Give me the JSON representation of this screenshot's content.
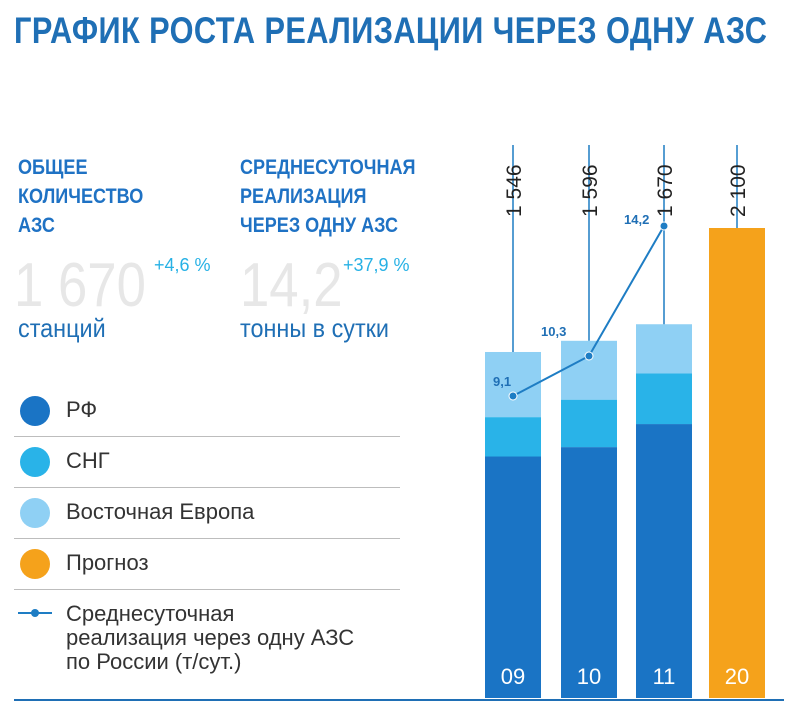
{
  "title": "ГРАФИК РОСТА РЕАЛИЗАЦИИ ЧЕРЕЗ ОДНУ АЗС",
  "colors": {
    "title": "#1f6fb5",
    "rf": "#1a74c5",
    "sng": "#29b3e8",
    "eu": "#8fd0f4",
    "forecast": "#f5a21b",
    "line": "#1e7dc4",
    "bignum": "#e7e7e7",
    "delta": "#27b1e5"
  },
  "kpi": {
    "stations": {
      "header": [
        "ОБЩЕЕ",
        "КОЛИЧЕСТВО",
        "АЗС"
      ],
      "value": "1 670",
      "delta": "+4,6 %",
      "unit": "станций"
    },
    "daily": {
      "header": [
        "СРЕДНЕСУТОЧНАЯ",
        "РЕАЛИЗАЦИЯ",
        "ЧЕРЕЗ ОДНУ АЗС"
      ],
      "value": "14,2",
      "delta": "+37,9 %",
      "unit": "тонны в сутки"
    }
  },
  "legend": {
    "items": [
      {
        "label": "РФ",
        "color_key": "rf"
      },
      {
        "label": "СНГ",
        "color_key": "sng"
      },
      {
        "label": "Восточная Европа",
        "color_key": "eu"
      },
      {
        "label": "Прогноз",
        "color_key": "forecast"
      }
    ],
    "line_label": [
      "Среднесуточная",
      "реализация через одну АЗС",
      "по России (т/сут.)"
    ]
  },
  "chart_data": {
    "type": "bar",
    "stacked": true,
    "categories": [
      "09",
      "10",
      "11",
      "20"
    ],
    "totals_labels": [
      "1 546",
      "1 596",
      "1 670",
      "2 100"
    ],
    "series": [
      {
        "name": "РФ",
        "values": [
          1079,
          1121,
          1224,
          null
        ]
      },
      {
        "name": "СНГ",
        "values": [
          176,
          212,
          226,
          null
        ]
      },
      {
        "name": "Восточная Европа",
        "values": [
          291,
          263,
          220,
          null
        ]
      },
      {
        "name": "Прогноз",
        "values": [
          null,
          null,
          null,
          2100
        ]
      }
    ],
    "ylim": [
      0,
      2100
    ],
    "line_series": {
      "name": "Среднесуточная реализация через одну АЗС по России (т/сут.)",
      "values": [
        9.1,
        10.3,
        14.2
      ],
      "labels": [
        "9,1",
        "10,3",
        "14,2"
      ],
      "ylim": [
        0,
        20
      ]
    }
  }
}
